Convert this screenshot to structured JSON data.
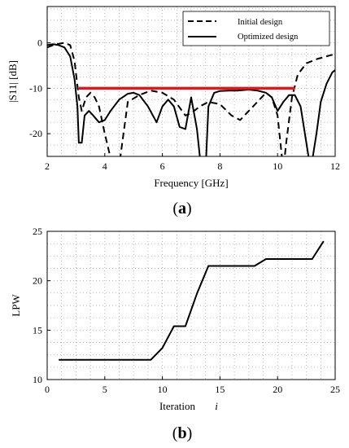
{
  "chart_data": [
    {
      "type": "line",
      "panel_label": "a",
      "xlabel": "Frequency [GHz]",
      "ylabel": "|S11| [dB]",
      "xlim": [
        2,
        12
      ],
      "ylim": [
        -25,
        8
      ],
      "xticks": [
        2,
        4,
        6,
        8,
        10,
        12
      ],
      "yticks": [
        0,
        -10,
        -20
      ],
      "grid": true,
      "legend_position": "top-right",
      "series": [
        {
          "name": "Initial design",
          "style": "dashed",
          "color": "#000000",
          "x": [
            2.0,
            2.2,
            2.4,
            2.6,
            2.8,
            2.95,
            3.1,
            3.2,
            3.35,
            3.5,
            3.65,
            3.8,
            4.0,
            4.15,
            4.25,
            4.3,
            4.5,
            4.8,
            5.2,
            5.6,
            6.0,
            6.4,
            6.8,
            7.0,
            7.3,
            7.6,
            8.0,
            8.4,
            8.7,
            9.0,
            9.3,
            9.6,
            9.8,
            10.0,
            10.1,
            10.2,
            10.3,
            10.5,
            10.7,
            11.0,
            11.4,
            11.8,
            12.0
          ],
          "y": [
            -1,
            -0.5,
            -0.2,
            0,
            -0.5,
            -4,
            -12,
            -15,
            -12,
            -11,
            -12,
            -14,
            -20,
            -24,
            -27,
            -27,
            -27,
            -13,
            -11.5,
            -10.5,
            -11,
            -12.5,
            -16,
            -15.5,
            -14,
            -13,
            -13.5,
            -16,
            -17,
            -15,
            -13,
            -11,
            -12,
            -16,
            -22,
            -28,
            -22,
            -12,
            -7,
            -4.5,
            -3.5,
            -2.8,
            -2.5
          ]
        },
        {
          "name": "Optimized design",
          "style": "solid",
          "color": "#000000",
          "x": [
            2.0,
            2.2,
            2.4,
            2.6,
            2.8,
            2.95,
            3.05,
            3.1,
            3.2,
            3.3,
            3.45,
            3.6,
            3.8,
            4.0,
            4.2,
            4.5,
            4.8,
            5.0,
            5.2,
            5.5,
            5.8,
            6.0,
            6.2,
            6.4,
            6.6,
            6.8,
            7.0,
            7.2,
            7.35,
            7.5,
            7.6,
            7.8,
            8.0,
            8.3,
            8.6,
            9.0,
            9.3,
            9.6,
            9.8,
            10.0,
            10.2,
            10.4,
            10.6,
            10.8,
            10.95,
            11.1,
            11.2,
            11.35,
            11.5,
            11.7,
            11.9,
            12.0
          ],
          "y": [
            -0.5,
            -0.3,
            -0.5,
            -1,
            -3,
            -8,
            -14,
            -22,
            -22,
            -16,
            -15,
            -16,
            -17.5,
            -17,
            -15,
            -12.5,
            -11.2,
            -11,
            -11.5,
            -14,
            -17.5,
            -14,
            -12.5,
            -14,
            -18.5,
            -19,
            -12,
            -19,
            -28,
            -28,
            -14,
            -11,
            -10.6,
            -10.5,
            -10.5,
            -10.3,
            -10.5,
            -11,
            -12,
            -15,
            -13,
            -11.5,
            -11.5,
            -14,
            -20,
            -26,
            -26,
            -20,
            -13,
            -9,
            -6.5,
            -6
          ]
        },
        {
          "name": "",
          "style": "solid",
          "color": "#e6141e",
          "x": [
            3.1,
            10.6
          ],
          "y": [
            -10,
            -10
          ]
        }
      ],
      "legend": [
        "Initial design",
        "Optimized design"
      ]
    },
    {
      "type": "line",
      "panel_label": "b",
      "xlabel": "Iteration",
      "xlabel_symbol": "i",
      "ylabel": "LPW",
      "xlim": [
        0,
        25
      ],
      "ylim": [
        10,
        25
      ],
      "xticks": [
        0,
        5,
        10,
        15,
        20,
        25
      ],
      "yticks": [
        10,
        15,
        20,
        25
      ],
      "grid": true,
      "series": [
        {
          "name": "",
          "style": "solid",
          "color": "#000000",
          "x": [
            1,
            2,
            3,
            4,
            5,
            6,
            7,
            8,
            9,
            10,
            11,
            12,
            13,
            14,
            15,
            16,
            17,
            18,
            19,
            20,
            21,
            22,
            23,
            24
          ],
          "y": [
            12,
            12,
            12,
            12,
            12,
            12,
            12,
            12,
            12,
            13.2,
            15.4,
            15.4,
            18.7,
            21.5,
            21.5,
            21.5,
            21.5,
            21.5,
            22.2,
            22.2,
            22.2,
            22.2,
            22.2,
            24
          ]
        }
      ]
    }
  ]
}
